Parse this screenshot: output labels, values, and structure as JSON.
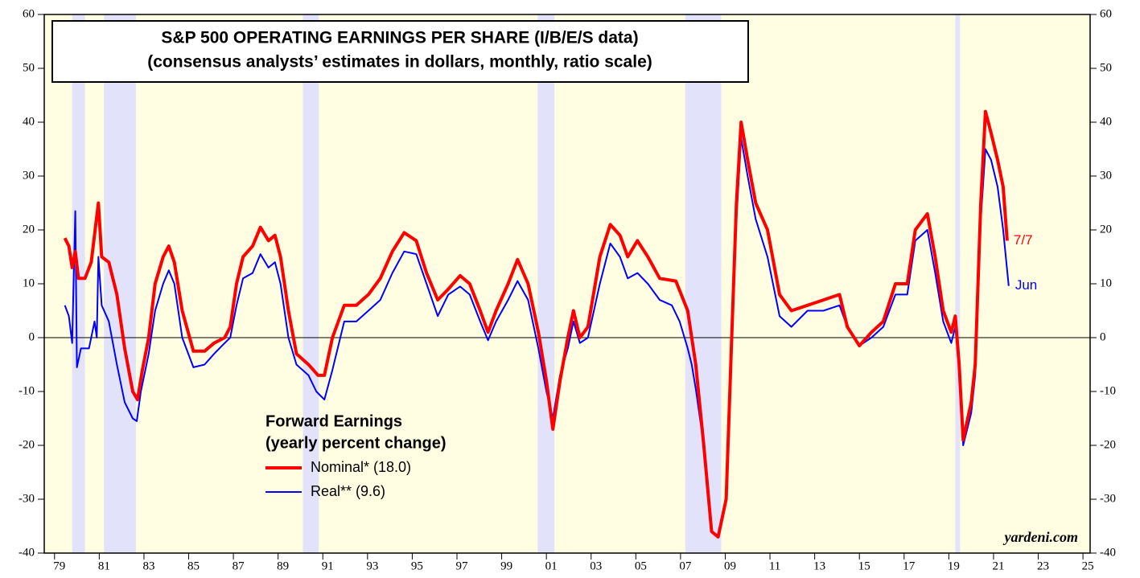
{
  "chart_data": {
    "type": "line",
    "title": "S&P 500 OPERATING EARNINGS PER SHARE (I/B/E/S data)",
    "subtitle": "(consensus analysts’ estimates in dollars, monthly, ratio scale)",
    "legend_title": [
      "Forward Earnings",
      "(yearly percent change)"
    ],
    "source": "yardeni.com",
    "background_color": "#fffde2",
    "recession_color": "#e2e2fb",
    "recessions": [
      [
        1979.79,
        1980.36
      ],
      [
        1981.21,
        1982.64
      ],
      [
        1990.11,
        1990.82
      ],
      [
        2000.61,
        2001.36
      ],
      [
        2007.21,
        2008.82
      ],
      [
        2019.29,
        2019.5
      ]
    ],
    "xlim": [
      1978.54,
      2025.32
    ],
    "xticks": [
      {
        "value": 1979,
        "label": "79"
      },
      {
        "value": 1981,
        "label": "81"
      },
      {
        "value": 1983,
        "label": "83"
      },
      {
        "value": 1985,
        "label": "85"
      },
      {
        "value": 1987,
        "label": "87"
      },
      {
        "value": 1989,
        "label": "89"
      },
      {
        "value": 1991,
        "label": "91"
      },
      {
        "value": 1993,
        "label": "93"
      },
      {
        "value": 1995,
        "label": "95"
      },
      {
        "value": 1997,
        "label": "97"
      },
      {
        "value": 1999,
        "label": "99"
      },
      {
        "value": 2001,
        "label": "01"
      },
      {
        "value": 2003,
        "label": "03"
      },
      {
        "value": 2005,
        "label": "05"
      },
      {
        "value": 2007,
        "label": "07"
      },
      {
        "value": 2009,
        "label": "09"
      },
      {
        "value": 2011,
        "label": "11"
      },
      {
        "value": 2013,
        "label": "13"
      },
      {
        "value": 2015,
        "label": "15"
      },
      {
        "value": 2017,
        "label": "17"
      },
      {
        "value": 2019,
        "label": "19"
      },
      {
        "value": 2021,
        "label": "21"
      },
      {
        "value": 2023,
        "label": "23"
      },
      {
        "value": 2025,
        "label": "25"
      }
    ],
    "ylim": [
      -40,
      60
    ],
    "yticks": [
      -40,
      -30,
      -20,
      -10,
      0,
      10,
      20,
      30,
      40,
      50,
      60
    ],
    "y2lim": [
      -40,
      60
    ],
    "y2ticks": [
      -40,
      -30,
      -20,
      -10,
      0,
      10,
      20,
      30,
      40,
      50,
      60
    ],
    "series": [
      {
        "name": "Real** (9.6)",
        "color": "#0000ff",
        "end_label": "Jun",
        "x": [
          1979.46,
          1979.64,
          1979.79,
          1979.93,
          1980.0,
          1980.18,
          1980.54,
          1980.79,
          1980.89,
          1980.96,
          1981.11,
          1981.43,
          1981.79,
          1982.14,
          1982.5,
          1982.68,
          1982.86,
          1983.21,
          1983.5,
          1983.86,
          1984.11,
          1984.36,
          1984.71,
          1985.21,
          1985.71,
          1986.14,
          1986.61,
          1986.86,
          1987.14,
          1987.43,
          1987.86,
          1988.21,
          1988.57,
          1988.86,
          1989.11,
          1989.46,
          1989.82,
          1990.36,
          1990.71,
          1991.07,
          1991.43,
          1991.96,
          1992.5,
          1993.04,
          1993.57,
          1994.11,
          1994.64,
          1995.18,
          1995.64,
          1996.14,
          1996.61,
          1997.14,
          1997.57,
          1998.04,
          1998.39,
          1998.75,
          1999.29,
          1999.71,
          2000.18,
          2000.64,
          2001.0,
          2001.29,
          2001.61,
          2001.96,
          2002.21,
          2002.5,
          2002.86,
          2003.39,
          2003.86,
          2004.29,
          2004.64,
          2005.07,
          2005.54,
          2006.07,
          2006.61,
          2006.96,
          2007.32,
          2007.5,
          2007.68,
          2008.04,
          2008.39,
          2008.68,
          2009.04,
          2009.29,
          2009.5,
          2009.71,
          2010.0,
          2010.36,
          2010.89,
          2011.43,
          2011.96,
          2012.68,
          2013.39,
          2014.11,
          2014.46,
          2015.0,
          2015.54,
          2016.07,
          2016.61,
          2017.14,
          2017.5,
          2018.04,
          2018.39,
          2018.75,
          2019.11,
          2019.29,
          2019.46,
          2019.64,
          2020.0,
          2020.18,
          2020.43,
          2020.64,
          2020.89,
          2021.18,
          2021.43,
          2021.68
        ],
        "values": [
          6,
          4,
          -1,
          23.5,
          -5.5,
          -2,
          -2,
          3,
          0,
          15,
          6,
          3,
          -5,
          -12,
          -15,
          -15.5,
          -10,
          -3,
          5,
          10,
          12.5,
          10,
          0,
          -5.5,
          -5,
          -3,
          -1,
          0,
          6,
          11,
          12,
          15.5,
          13,
          14,
          10,
          0,
          -5,
          -7,
          -10,
          -11.5,
          -6,
          3,
          3,
          5,
          7,
          12,
          16,
          15.5,
          10,
          4,
          8,
          9.5,
          8,
          3,
          -0.5,
          3,
          7,
          10.5,
          7,
          -2,
          -10,
          -15,
          -7,
          -2,
          3,
          -1,
          0,
          10,
          17.5,
          15,
          11,
          12,
          10,
          7,
          6,
          3,
          -2,
          -5,
          -9.5,
          -20,
          -36,
          -37,
          -30,
          0,
          22,
          37,
          30,
          22,
          15,
          4,
          2,
          5,
          5,
          6,
          2,
          -1.5,
          0,
          2,
          8,
          8,
          18,
          20,
          12,
          3,
          -1,
          2,
          -5,
          -20,
          -14,
          -7,
          22,
          35,
          33,
          28,
          20,
          9.6
        ]
      },
      {
        "name": "Nominal* (18.0)",
        "color": "#ff0000",
        "end_label": "7/7",
        "x": [
          1979.46,
          1979.64,
          1979.79,
          1979.93,
          1980.07,
          1980.36,
          1980.64,
          1980.96,
          1981.11,
          1981.43,
          1981.79,
          1982.14,
          1982.5,
          1982.71,
          1982.93,
          1983.21,
          1983.5,
          1983.86,
          1984.11,
          1984.36,
          1984.71,
          1985.21,
          1985.71,
          1986.14,
          1986.61,
          1986.86,
          1987.14,
          1987.43,
          1987.86,
          1988.21,
          1988.57,
          1988.86,
          1989.11,
          1989.46,
          1989.82,
          1990.36,
          1990.79,
          1991.07,
          1991.43,
          1991.96,
          1992.5,
          1993.04,
          1993.57,
          1994.11,
          1994.64,
          1995.18,
          1995.64,
          1996.14,
          1996.61,
          1997.14,
          1997.57,
          1998.04,
          1998.39,
          1998.75,
          1999.29,
          1999.71,
          2000.18,
          2000.64,
          2001.0,
          2001.29,
          2001.61,
          2001.96,
          2002.21,
          2002.5,
          2002.86,
          2003.39,
          2003.86,
          2004.29,
          2004.64,
          2005.07,
          2005.54,
          2006.07,
          2006.79,
          2007.32,
          2007.68,
          2008.04,
          2008.39,
          2008.68,
          2009.04,
          2009.29,
          2009.5,
          2009.71,
          2010.0,
          2010.36,
          2010.89,
          2011.43,
          2011.96,
          2012.68,
          2013.39,
          2014.11,
          2014.46,
          2015.0,
          2015.54,
          2016.07,
          2016.61,
          2017.14,
          2017.5,
          2018.04,
          2018.39,
          2018.75,
          2019.11,
          2019.29,
          2019.46,
          2019.64,
          2020.0,
          2020.18,
          2020.43,
          2020.64,
          2020.89,
          2021.18,
          2021.43,
          2021.61
        ],
        "values": [
          18.5,
          17,
          13,
          16,
          11,
          11,
          14,
          25,
          15,
          14,
          8,
          -2,
          -10,
          -11.5,
          -6,
          0,
          10,
          15,
          17,
          14,
          5,
          -2.5,
          -2.5,
          -1,
          0,
          2,
          10,
          15,
          17,
          20.5,
          18,
          19,
          15,
          5,
          -3,
          -5,
          -7,
          -7,
          0,
          6,
          6,
          8,
          11,
          16,
          19.5,
          18,
          12,
          7,
          9,
          11.5,
          10,
          5,
          1,
          5,
          10,
          14.5,
          10,
          1,
          -8,
          -17,
          -8,
          0,
          5,
          0,
          2,
          15,
          21,
          19,
          15,
          18,
          15,
          11,
          10.5,
          5,
          -5,
          -20,
          -36,
          -37,
          -30,
          0,
          25,
          40,
          33,
          25,
          20,
          8,
          5,
          6,
          7,
          8,
          2,
          -1.5,
          1,
          3,
          10,
          10,
          20,
          23,
          15,
          5,
          1,
          4,
          -5,
          -19,
          -12,
          -5,
          25,
          42,
          38,
          33,
          28,
          18
        ]
      }
    ]
  }
}
